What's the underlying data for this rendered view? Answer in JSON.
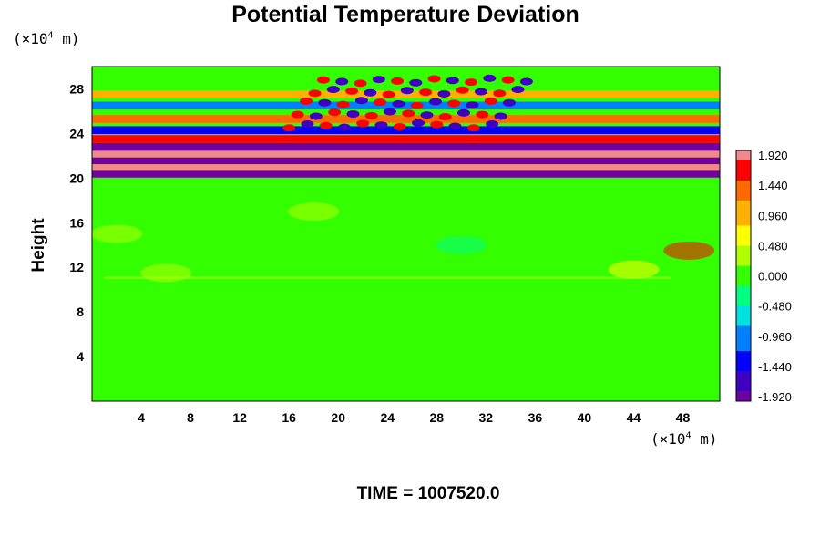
{
  "header": {
    "title": "Potential Temperature Deviation",
    "y_unit_prefix": "(×10",
    "y_unit_exp": "4",
    "y_unit_suffix": " m)",
    "x_unit_prefix": "(×10",
    "x_unit_exp": "4",
    "x_unit_suffix": " m)"
  },
  "footer": {
    "time_label": "TIME = 1007520.0"
  },
  "chart_data": {
    "type": "heatmap",
    "title": "Potential Temperature Deviation",
    "xlabel": "",
    "ylabel": "Height",
    "xlim": [
      0,
      51
    ],
    "ylim": [
      0,
      30
    ],
    "x_ticks": [
      4,
      8,
      12,
      16,
      20,
      24,
      28,
      32,
      36,
      40,
      44,
      48
    ],
    "y_ticks": [
      4,
      8,
      12,
      16,
      20,
      24,
      28
    ],
    "x_tick_labels": [
      "4",
      "8",
      "12",
      "16",
      "20",
      "24",
      "28",
      "32",
      "36",
      "40",
      "44",
      "48"
    ],
    "y_tick_labels": [
      "4",
      "8",
      "12",
      "16",
      "20",
      "24",
      "28"
    ],
    "colorbar": {
      "min": -1.92,
      "max": 1.92,
      "tick_labels": [
        "1.920",
        "1.440",
        "0.960",
        "0.480",
        "0.000",
        "-0.480",
        "-0.960",
        "-1.440",
        "-1.920"
      ],
      "colors": [
        "#f08a8a",
        "#ff0000",
        "#ff6a00",
        "#ffb000",
        "#ffff00",
        "#b0ff00",
        "#33ff00",
        "#00ff80",
        "#00e0e0",
        "#0080ff",
        "#0000ff",
        "#4000c0",
        "#7000a0"
      ]
    },
    "field_description": "Near-zero field below ~20 (x10^4 m); strong alternating horizontal bands between 20 and 25; wave-like cellular pattern above 24 centered near x=20-32; weak perturbations near height 11-12.",
    "bands": [
      {
        "y": 20.4,
        "value": -1.9
      },
      {
        "y": 21.0,
        "value": 1.9
      },
      {
        "y": 21.6,
        "value": -1.9
      },
      {
        "y": 22.2,
        "value": 1.9
      },
      {
        "y": 22.8,
        "value": -1.8
      },
      {
        "y": 23.5,
        "value": 1.6
      },
      {
        "y": 24.3,
        "value": -1.4
      },
      {
        "y": 25.3,
        "value": 1.2
      },
      {
        "y": 26.5,
        "value": -1.0
      },
      {
        "y": 27.5,
        "value": 0.8
      }
    ]
  }
}
